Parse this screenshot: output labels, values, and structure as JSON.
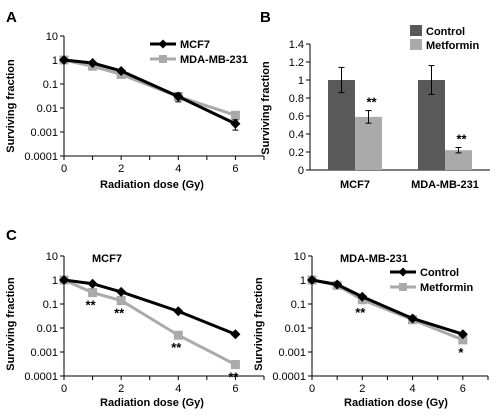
{
  "figure": {
    "panels": [
      "A",
      "B",
      "C"
    ]
  },
  "chart_data": [
    {
      "id": "A",
      "type": "line",
      "title": "",
      "xlabel": "Radiation dose (Gy)",
      "ylabel": "Surviving fraction",
      "yscale": "log",
      "ylim": [
        0.0001,
        10
      ],
      "xlim": [
        0,
        7
      ],
      "x_ticks": [
        "0",
        "2",
        "4",
        "6"
      ],
      "y_ticks": [
        "10",
        "1",
        "0.1",
        "0.01",
        "0.001",
        "0.0001"
      ],
      "legend": "top-right",
      "x": [
        0,
        1,
        2,
        4,
        6
      ],
      "series": [
        {
          "name": "MCF7",
          "values": [
            1,
            0.75,
            0.35,
            0.03,
            0.0022
          ],
          "errors": [
            0,
            0,
            0,
            0.012,
            0.001
          ],
          "color": "#000000",
          "marker": "diamond"
        },
        {
          "name": "MDA-MB-231",
          "values": [
            1,
            0.55,
            0.25,
            0.03,
            0.005
          ],
          "errors": [
            0,
            0,
            0,
            0,
            0
          ],
          "color": "#aaaaaa",
          "marker": "square"
        }
      ]
    },
    {
      "id": "B",
      "type": "bar",
      "title": "",
      "xlabel": "",
      "ylabel": "Surviving fraction",
      "ylim": [
        0,
        1.4
      ],
      "y_ticks": [
        "0",
        "0.2",
        "0.4",
        "0.6",
        "0.8",
        "1",
        "1.2",
        "1.4"
      ],
      "legend": "top-right",
      "categories": [
        "MCF7",
        "MDA-MB-231"
      ],
      "series": [
        {
          "name": "Control",
          "values": [
            1.0,
            1.0
          ],
          "errors": [
            0.14,
            0.16
          ],
          "color": "#595959"
        },
        {
          "name": "Metformin",
          "values": [
            0.59,
            0.22
          ],
          "errors": [
            0.07,
            0.03
          ],
          "color": "#aaaaaa"
        }
      ],
      "annotations": [
        {
          "category": 0,
          "series": 1,
          "text": "**"
        },
        {
          "category": 1,
          "series": 1,
          "text": "**"
        }
      ]
    },
    {
      "id": "C-left",
      "type": "line",
      "title": "MCF7",
      "xlabel": "Radiation dose (Gy)",
      "ylabel": "Surviving fraction",
      "yscale": "log",
      "ylim": [
        0.0001,
        10
      ],
      "xlim": [
        0,
        7
      ],
      "x_ticks": [
        "0",
        "2",
        "4",
        "6"
      ],
      "y_ticks": [
        "10",
        "1",
        "0.1",
        "0.01",
        "0.001",
        "0.0001"
      ],
      "x": [
        0,
        1,
        2,
        4,
        6
      ],
      "series": [
        {
          "name": "Control",
          "values": [
            1,
            0.7,
            0.32,
            0.05,
            0.0055
          ],
          "color": "#000000",
          "marker": "diamond"
        },
        {
          "name": "Metformin",
          "values": [
            1,
            0.3,
            0.14,
            0.005,
            0.0003
          ],
          "color": "#aaaaaa",
          "marker": "square"
        }
      ],
      "annotations": [
        {
          "x": 1,
          "text": "**"
        },
        {
          "x": 2,
          "text": "**"
        },
        {
          "x": 4,
          "text": "**"
        },
        {
          "x": 6,
          "text": "**"
        }
      ]
    },
    {
      "id": "C-right",
      "type": "line",
      "title": "MDA-MB-231",
      "xlabel": "Radiation dose (Gy)",
      "ylabel": "Surviving fraction",
      "yscale": "log",
      "ylim": [
        0.0001,
        10
      ],
      "xlim": [
        0,
        7
      ],
      "x_ticks": [
        "0",
        "2",
        "4",
        "6"
      ],
      "y_ticks": [
        "10",
        "1",
        "0.1",
        "0.01",
        "0.001",
        "0.0001"
      ],
      "legend": "top-right",
      "x": [
        0,
        1,
        2,
        4,
        6
      ],
      "series": [
        {
          "name": "Control",
          "values": [
            1,
            0.65,
            0.2,
            0.025,
            0.0055
          ],
          "color": "#000000",
          "marker": "diamond"
        },
        {
          "name": "Metformin",
          "values": [
            1,
            0.6,
            0.15,
            0.022,
            0.0032
          ],
          "color": "#aaaaaa",
          "marker": "square"
        }
      ],
      "annotations": [
        {
          "x": 2,
          "text": "**"
        },
        {
          "x": 6,
          "text": "*"
        }
      ]
    }
  ]
}
